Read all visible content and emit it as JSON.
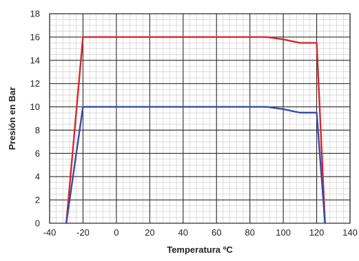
{
  "chart_data": {
    "type": "line",
    "xlabel": "Temperatura ºC",
    "ylabel": "Presión en Bar",
    "xlim": [
      -40,
      140
    ],
    "ylim": [
      0,
      18
    ],
    "x_ticks": [
      -40,
      -20,
      0,
      20,
      40,
      60,
      80,
      100,
      120,
      140
    ],
    "y_ticks": [
      0,
      2,
      4,
      6,
      8,
      10,
      12,
      14,
      16,
      18
    ],
    "grid": true,
    "legend": "none",
    "series": [
      {
        "color": "#d9262b",
        "x": [
          -30,
          -20,
          90,
          100,
          110,
          120,
          125
        ],
        "y": [
          0,
          16,
          16,
          15.8,
          15.5,
          15.5,
          0
        ]
      },
      {
        "color": "#3a4ba8",
        "x": [
          -30,
          -20,
          90,
          100,
          110,
          120,
          125
        ],
        "y": [
          0,
          10,
          10,
          9.8,
          9.5,
          9.5,
          0
        ]
      }
    ]
  }
}
